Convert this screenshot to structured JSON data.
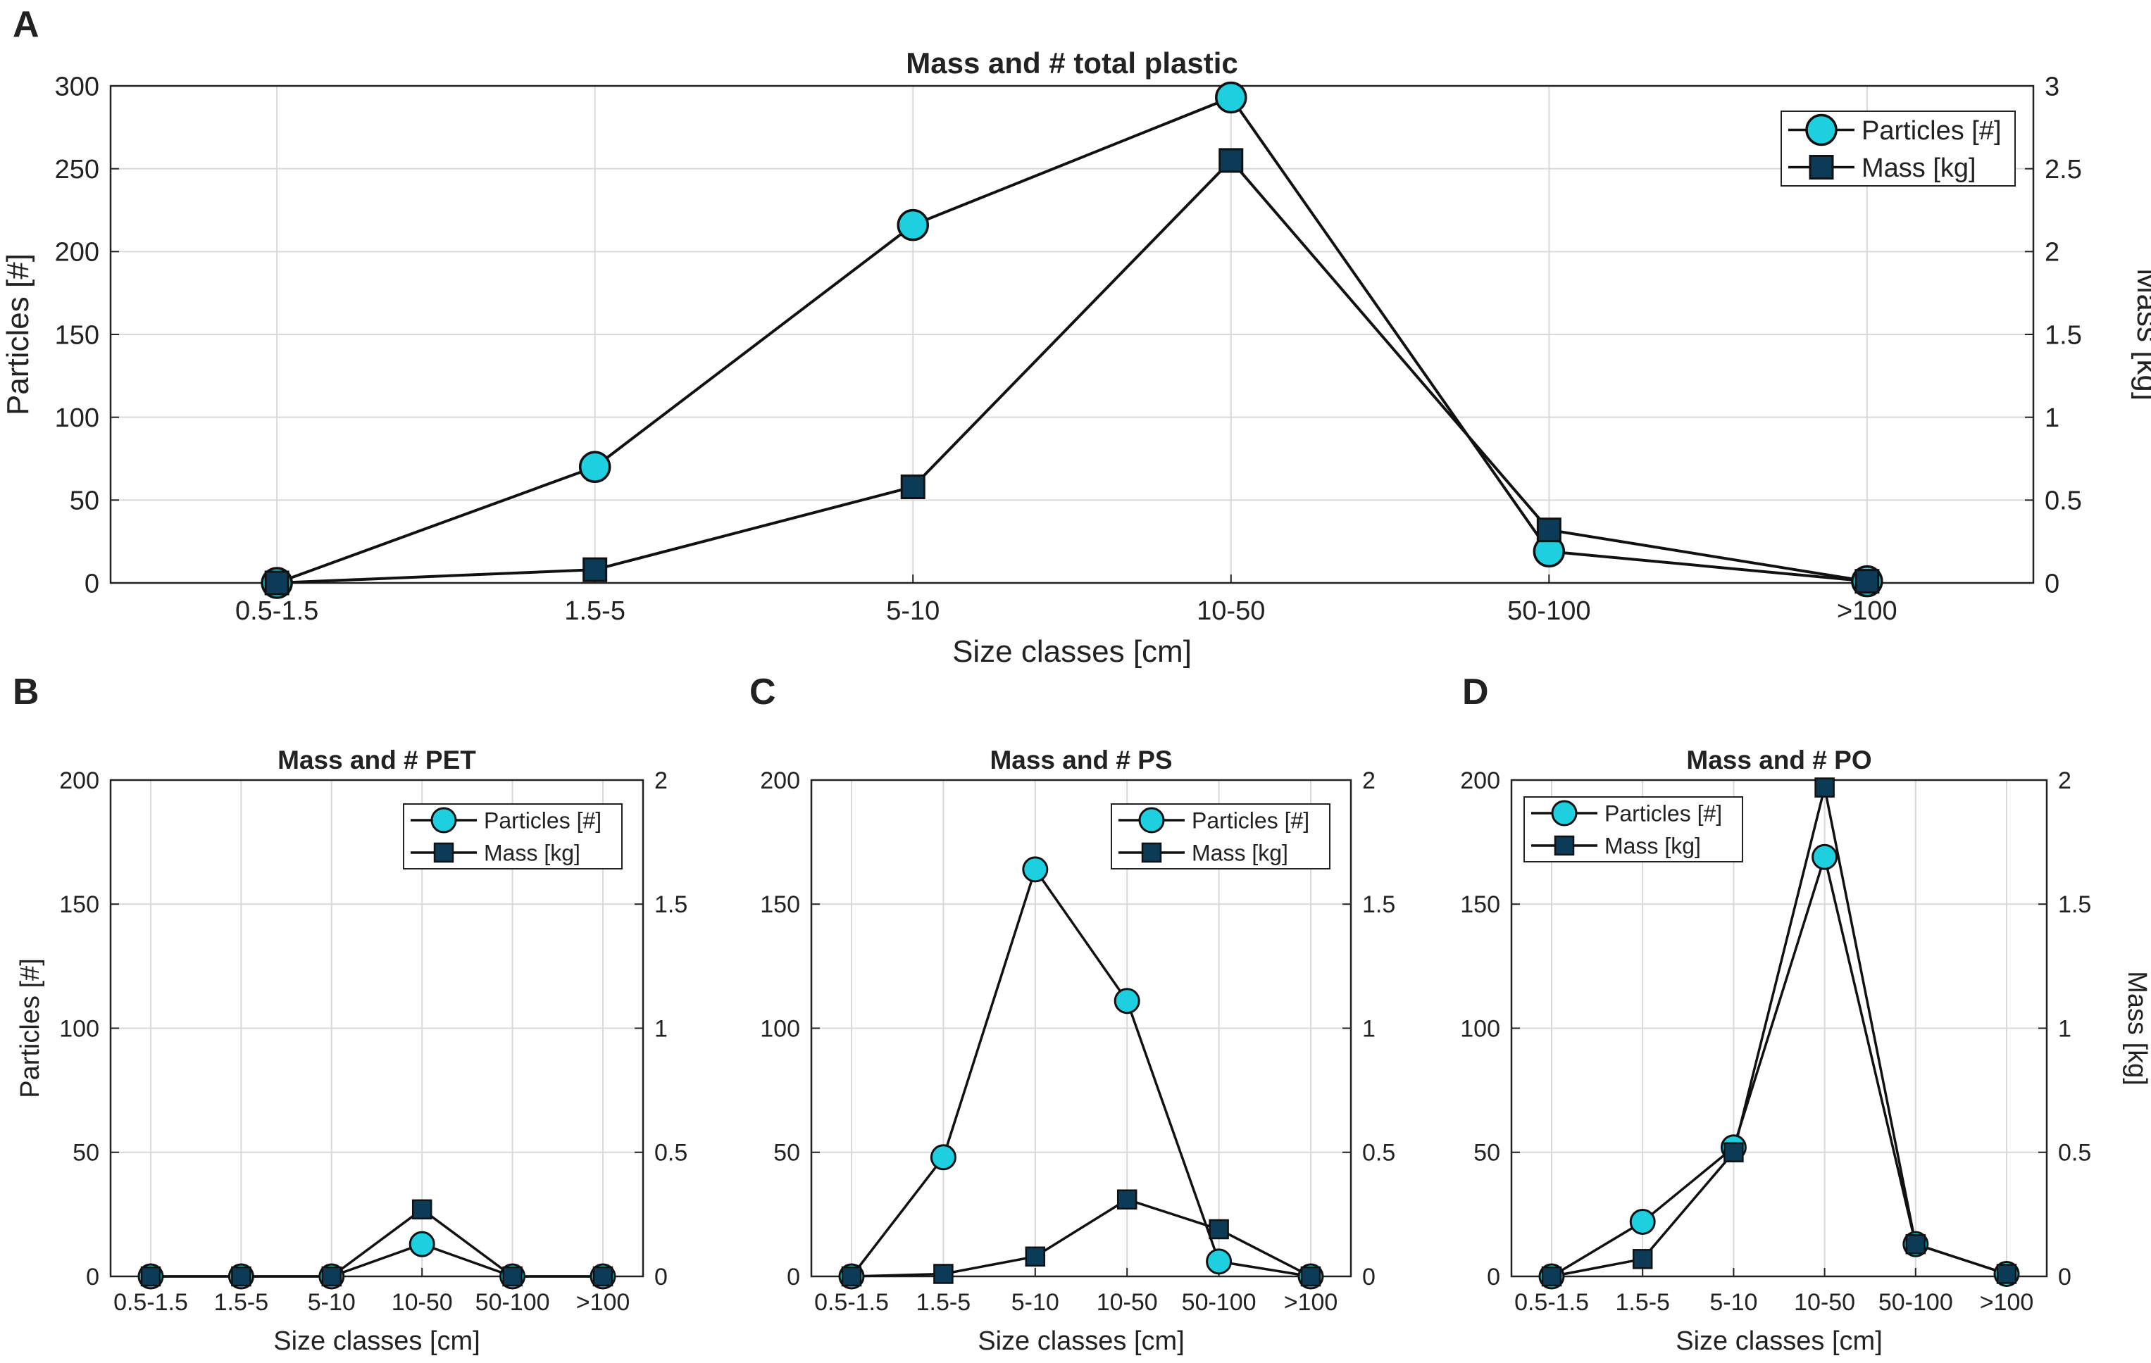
{
  "colors": {
    "particles_fill": "#1ecfe0",
    "mass_fill": "#0b3b57",
    "line": "#111111",
    "grid": "#d9d9d9",
    "axis": "#222222"
  },
  "chart_data": [
    {
      "panel": "A",
      "type": "line",
      "title": "Mass and # total plastic",
      "xlabel": "Size classes [cm]",
      "ylabel_left": "Particles [#]",
      "ylabel_right": "Mass [kg]",
      "categories": [
        "0.5-1.5",
        "1.5-5",
        "5-10",
        "10-50",
        "50-100",
        ">100"
      ],
      "ylim_left": [
        0,
        300
      ],
      "ylim_right": [
        0,
        3
      ],
      "yticks_left": [
        "0",
        "50",
        "100",
        "150",
        "200",
        "250",
        "300"
      ],
      "yticks_right": [
        "0",
        "0.5",
        "1",
        "1.5",
        "2",
        "2.5",
        "3"
      ],
      "grid": true,
      "legend_position": "top-right",
      "series": [
        {
          "name": "Particles [#]",
          "axis": "left",
          "marker": "circle",
          "values": [
            0,
            70,
            216,
            293,
            19,
            1
          ]
        },
        {
          "name": "Mass [kg]",
          "axis": "right",
          "marker": "square",
          "values": [
            0,
            0.08,
            0.58,
            2.55,
            0.32,
            0.01
          ]
        }
      ]
    },
    {
      "panel": "B",
      "type": "line",
      "title": "Mass and # PET",
      "xlabel": "Size classes [cm]",
      "ylabel_left": "Particles [#]",
      "ylabel_right": "",
      "categories": [
        "0.5-1.5",
        "1.5-5",
        "5-10",
        "10-50",
        "50-100",
        ">100"
      ],
      "ylim_left": [
        0,
        200
      ],
      "ylim_right": [
        0,
        2
      ],
      "yticks_left": [
        "0",
        "50",
        "100",
        "150",
        "200"
      ],
      "yticks_right": [
        "0",
        "0.5",
        "1",
        "1.5",
        "2"
      ],
      "grid": true,
      "legend_position": "top-right",
      "series": [
        {
          "name": "Particles [#]",
          "axis": "left",
          "marker": "circle",
          "values": [
            0,
            0,
            0,
            13,
            0,
            0
          ]
        },
        {
          "name": "Mass [kg]",
          "axis": "right",
          "marker": "square",
          "values": [
            0,
            0,
            0,
            0.27,
            0,
            0
          ]
        }
      ]
    },
    {
      "panel": "C",
      "type": "line",
      "title": "Mass and # PS",
      "xlabel": "Size classes [cm]",
      "ylabel_left": "",
      "ylabel_right": "",
      "categories": [
        "0.5-1.5",
        "1.5-5",
        "5-10",
        "10-50",
        "50-100",
        ">100"
      ],
      "ylim_left": [
        0,
        200
      ],
      "ylim_right": [
        0,
        2
      ],
      "yticks_left": [
        "0",
        "50",
        "100",
        "150",
        "200"
      ],
      "yticks_right": [
        "0",
        "0.5",
        "1",
        "1.5",
        "2"
      ],
      "grid": true,
      "legend_position": "top-right",
      "series": [
        {
          "name": "Particles [#]",
          "axis": "left",
          "marker": "circle",
          "values": [
            0,
            48,
            164,
            111,
            6,
            0
          ]
        },
        {
          "name": "Mass [kg]",
          "axis": "right",
          "marker": "square",
          "values": [
            0,
            0.01,
            0.08,
            0.31,
            0.19,
            0
          ]
        }
      ]
    },
    {
      "panel": "D",
      "type": "line",
      "title": "Mass and # PO",
      "xlabel": "Size classes [cm]",
      "ylabel_left": "",
      "ylabel_right": "Mass [kg]",
      "categories": [
        "0.5-1.5",
        "1.5-5",
        "5-10",
        "10-50",
        "50-100",
        ">100"
      ],
      "ylim_left": [
        0,
        200
      ],
      "ylim_right": [
        0,
        2
      ],
      "yticks_left": [
        "0",
        "50",
        "100",
        "150",
        "200"
      ],
      "yticks_right": [
        "0",
        "0.5",
        "1",
        "1.5",
        "2"
      ],
      "grid": true,
      "legend_position": "top-left",
      "series": [
        {
          "name": "Particles [#]",
          "axis": "left",
          "marker": "circle",
          "values": [
            0,
            22,
            52,
            169,
            13,
            1
          ]
        },
        {
          "name": "Mass [kg]",
          "axis": "right",
          "marker": "square",
          "values": [
            0,
            0.07,
            0.5,
            1.97,
            0.13,
            0.01
          ]
        }
      ]
    }
  ]
}
